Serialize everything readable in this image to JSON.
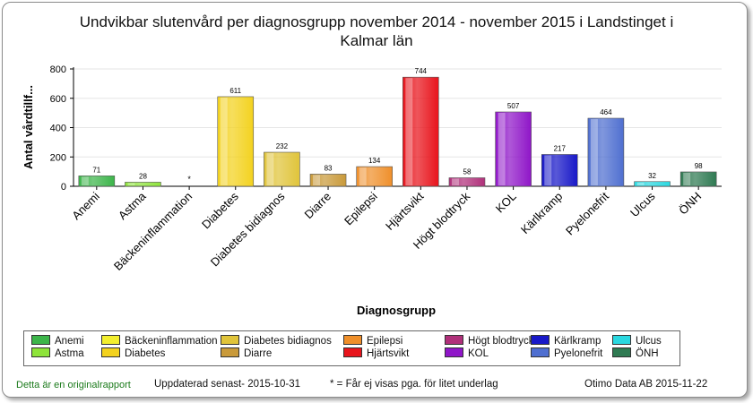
{
  "chart_data": {
    "type": "bar",
    "title": "Undvikbar slutenvård per diagnosgrupp november 2014 - november 2015 i    Landstinget i\nKalmar län",
    "ylabel": "Antal vårdtillf...",
    "xlabel": "Diagnosgrupp",
    "ylim": [
      0,
      800
    ],
    "yticks": [
      0,
      200,
      400,
      600,
      800
    ],
    "grid": true,
    "categories": [
      "Anemi",
      "Astma",
      "Bäckeninflammation",
      "Diabetes",
      "Diabetes bidiagnos",
      "Diarre",
      "Epilepsi",
      "Hjärtsvikt",
      "Högt blodtryck",
      "KOL",
      "Kärlkramp",
      "Pyelonefrit",
      "Ulcus",
      "ÖNH"
    ],
    "values": [
      71,
      28,
      null,
      611,
      232,
      83,
      134,
      744,
      58,
      507,
      217,
      464,
      32,
      98
    ],
    "value_labels": [
      "71",
      "28",
      "*",
      "611",
      "232",
      "83",
      "134",
      "744",
      "58",
      "507",
      "217",
      "464",
      "32",
      "98"
    ],
    "colors": [
      "#3cb54a",
      "#8ee43a",
      "#f2ee2e",
      "#f3d21e",
      "#e0c43a",
      "#c99a3a",
      "#ef8f2a",
      "#e8141c",
      "#b0307a",
      "#8f16c8",
      "#1818c8",
      "#4f6fd0",
      "#2ad8e0",
      "#2f7a52"
    ],
    "legend": [
      {
        "label": "Anemi",
        "color": "#3cb54a"
      },
      {
        "label": "Astma",
        "color": "#8ee43a"
      },
      {
        "label": "Bäckeninflammation",
        "color": "#f2ee2e"
      },
      {
        "label": "Diabetes",
        "color": "#f3d21e"
      },
      {
        "label": "Diabetes bidiagnos",
        "color": "#e0c43a"
      },
      {
        "label": "Diarre",
        "color": "#c99a3a"
      },
      {
        "label": "Epilepsi",
        "color": "#ef8f2a"
      },
      {
        "label": "Hjärtsvikt",
        "color": "#e8141c"
      },
      {
        "label": "Högt blodtryck",
        "color": "#b0307a"
      },
      {
        "label": "KOL",
        "color": "#8f16c8"
      },
      {
        "label": "Kärlkramp",
        "color": "#1818c8"
      },
      {
        "label": "Pyelonefrit",
        "color": "#4f6fd0"
      },
      {
        "label": "Ulcus",
        "color": "#2ad8e0"
      },
      {
        "label": "ÖNH",
        "color": "#2f7a52"
      }
    ],
    "legend_position": "bottom"
  },
  "footer": {
    "original_report": "Detta är en originalrapport",
    "updated": "Uppdaterad senast- 2015-10-31",
    "note": "* = Får ej visas pga. för litet underlag",
    "vendor": "Otimo Data AB 2015-11-22"
  }
}
